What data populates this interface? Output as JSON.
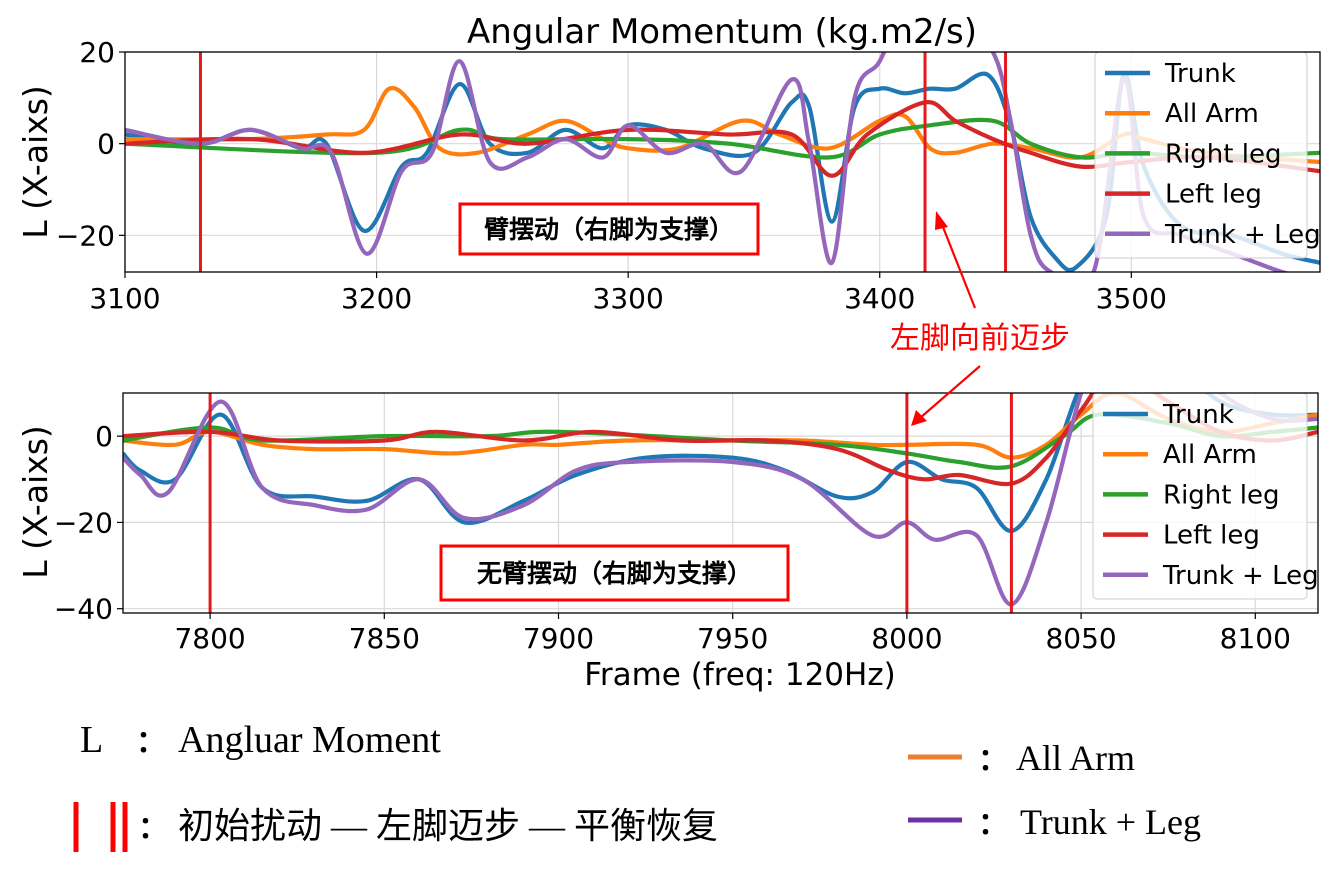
{
  "chart_data": [
    {
      "type": "line",
      "title": "Angular Momentum (kg.m2/s)",
      "xlabel": "",
      "ylabel": "L (X-aixs)",
      "xlim": [
        3100,
        3575
      ],
      "ylim": [
        -28,
        20
      ],
      "xticks": [
        3100,
        3200,
        3300,
        3400,
        3500
      ],
      "yticks": [
        20,
        0,
        -20
      ],
      "grid": true,
      "legend": "top-right",
      "vlines": [
        3130,
        3418,
        3450
      ],
      "vline_color": "#e31a1c",
      "annotation_box": "臂摆动（右脚为支撑）",
      "series": [
        {
          "name": "Trunk",
          "color": "#1f77b4",
          "x": [
            3100,
            3130,
            3150,
            3170,
            3180,
            3195,
            3210,
            3220,
            3233,
            3245,
            3260,
            3275,
            3290,
            3300,
            3315,
            3330,
            3350,
            3365,
            3372,
            3381,
            3390,
            3400,
            3410,
            3420,
            3430,
            3443,
            3452,
            3460,
            3470,
            3478,
            3490,
            3497,
            3505,
            3520,
            3540,
            3560,
            3575
          ],
          "y": [
            2,
            0,
            3,
            -1,
            0,
            -19,
            -5,
            -2,
            13,
            0,
            -2,
            3,
            -1,
            4,
            3,
            -1,
            -2,
            9,
            8,
            -17,
            8,
            12,
            11,
            12,
            12,
            15,
            4,
            -16,
            -25,
            -27,
            -16,
            15,
            -5,
            -18,
            -20,
            -24,
            -26
          ]
        },
        {
          "name": "All Arm",
          "color": "#ff7f0e",
          "x": [
            3100,
            3150,
            3180,
            3195,
            3205,
            3215,
            3225,
            3240,
            3260,
            3275,
            3290,
            3300,
            3320,
            3345,
            3360,
            3380,
            3400,
            3410,
            3420,
            3430,
            3445,
            3460,
            3480,
            3497,
            3505,
            3530,
            3575
          ],
          "y": [
            1,
            1,
            2,
            3,
            12,
            8,
            -1,
            -2,
            2,
            5,
            1,
            -1,
            -1,
            5,
            2,
            -1,
            5,
            6,
            -1,
            -2,
            0,
            -1,
            -3,
            2,
            1,
            -2,
            -4
          ]
        },
        {
          "name": "Right leg",
          "color": "#2ca02c",
          "x": [
            3100,
            3200,
            3233,
            3250,
            3300,
            3340,
            3380,
            3400,
            3420,
            3445,
            3460,
            3480,
            3500,
            3530,
            3575
          ],
          "y": [
            0,
            -2,
            3,
            1,
            1,
            0,
            -3,
            2,
            4,
            5,
            0,
            -3,
            -2,
            -3,
            -2
          ]
        },
        {
          "name": "Left leg",
          "color": "#d62728",
          "x": [
            3100,
            3150,
            3195,
            3233,
            3260,
            3300,
            3340,
            3365,
            3381,
            3395,
            3418,
            3430,
            3445,
            3460,
            3480,
            3500,
            3530,
            3575
          ],
          "y": [
            0,
            1,
            -2,
            2,
            0,
            3,
            2,
            2,
            -7,
            2,
            9,
            5,
            1,
            -2,
            -5,
            -4,
            -3,
            -6
          ]
        },
        {
          "name": "Trunk + Leg",
          "color": "#9467bd",
          "x": [
            3100,
            3130,
            3150,
            3170,
            3182,
            3196,
            3210,
            3222,
            3233,
            3245,
            3260,
            3275,
            3290,
            3300,
            3315,
            3330,
            3345,
            3365,
            3372,
            3381,
            3390,
            3400,
            3410,
            3418,
            3430,
            3445,
            3452,
            3460,
            3468,
            3485,
            3497,
            3505,
            3520,
            3545,
            3560,
            3575
          ],
          "y": [
            3,
            0,
            3,
            -1,
            -2,
            -24,
            -6,
            -2,
            18,
            -4,
            -3,
            1,
            -3,
            4,
            -2,
            0,
            -6,
            14,
            0,
            -26,
            10,
            18,
            30,
            32,
            28,
            20,
            5,
            -20,
            -28,
            -28,
            14,
            -16,
            -20,
            -25,
            -28,
            -30
          ]
        }
      ]
    },
    {
      "type": "line",
      "title": "",
      "xlabel": "Frame (freq: 120Hz)",
      "ylabel": "L (X-aixs)",
      "xlim": [
        7775,
        8118
      ],
      "ylim": [
        -41,
        10
      ],
      "xticks": [
        7800,
        7850,
        7900,
        7950,
        8000,
        8050,
        8100
      ],
      "yticks": [
        0,
        -20,
        -40
      ],
      "grid": true,
      "legend": "top-right",
      "vlines": [
        7800,
        8000,
        8030
      ],
      "vline_color": "#e31a1c",
      "annotation_box": "无臂摆动（右脚为支撑）",
      "series": [
        {
          "name": "Trunk",
          "color": "#1f77b4",
          "x": [
            7775,
            7780,
            7790,
            7803,
            7815,
            7830,
            7845,
            7860,
            7873,
            7890,
            7905,
            7925,
            7950,
            7965,
            7980,
            7990,
            8000,
            8010,
            8020,
            8030,
            8040,
            8050,
            8060,
            8075,
            8090,
            8105,
            8118
          ],
          "y": [
            -4,
            -8,
            -10,
            5,
            -12,
            -14,
            -15,
            -10,
            -20,
            -15,
            -9,
            -5,
            -5,
            -8,
            -14,
            -13,
            -6,
            -10,
            -12,
            -22,
            -10,
            12,
            25,
            18,
            8,
            5,
            5
          ]
        },
        {
          "name": "All Arm",
          "color": "#ff7f0e",
          "x": [
            7775,
            7790,
            7800,
            7815,
            7830,
            7850,
            7870,
            7890,
            7900,
            7920,
            7950,
            7970,
            7990,
            8000,
            8020,
            8030,
            8040,
            8050,
            8060,
            8075,
            8090,
            8105,
            8118
          ],
          "y": [
            -1,
            -2,
            1,
            -2,
            -3,
            -3,
            -4,
            -2,
            -2,
            -1,
            -1,
            -1,
            -2,
            -2,
            -2,
            -5,
            -2,
            5,
            10,
            4,
            1,
            3,
            5
          ]
        },
        {
          "name": "Right leg",
          "color": "#2ca02c",
          "x": [
            7775,
            7800,
            7815,
            7850,
            7880,
            7900,
            7950,
            7980,
            8000,
            8015,
            8030,
            8045,
            8055,
            8075,
            8090,
            8105,
            8118
          ],
          "y": [
            -1,
            2,
            -1,
            0,
            0,
            1,
            -1,
            -2,
            -4,
            -6,
            -7,
            0,
            5,
            3,
            0,
            1,
            2
          ]
        },
        {
          "name": "Left leg",
          "color": "#d62728",
          "x": [
            7775,
            7800,
            7820,
            7850,
            7865,
            7890,
            7910,
            7935,
            7960,
            7980,
            7995,
            8005,
            8015,
            8030,
            8040,
            8050,
            8060,
            8075,
            8090,
            8105,
            8118
          ],
          "y": [
            0,
            1,
            -1,
            -1,
            1,
            -1,
            1,
            -1,
            -1,
            -3,
            -8,
            -10,
            -9,
            -11,
            -5,
            6,
            15,
            8,
            1,
            -1,
            1
          ]
        },
        {
          "name": "Trunk + Leg",
          "color": "#9467bd",
          "x": [
            7775,
            7780,
            7788,
            7803,
            7815,
            7830,
            7845,
            7860,
            7873,
            7890,
            7905,
            7920,
            7950,
            7970,
            7990,
            8000,
            8008,
            8020,
            8030,
            8040,
            8050,
            8060,
            8075,
            8090,
            8105,
            8118
          ],
          "y": [
            -5,
            -9,
            -13,
            8,
            -12,
            -16,
            -17,
            -10,
            -19,
            -16,
            -8,
            -6,
            -6,
            -10,
            -23,
            -20,
            -24,
            -23,
            -39,
            -20,
            10,
            30,
            22,
            10,
            4,
            4
          ]
        }
      ]
    }
  ],
  "arrow_label": "左脚向前迈步",
  "notes": {
    "l_symbol": "L",
    "l_colon": "：",
    "l_text": "Angluar Moment",
    "vline_colon": "：",
    "vline_text": "初始扰动 — 左脚迈步 — 平衡恢复",
    "arm_colon": "：",
    "arm_text": "All Arm",
    "arm_color": "#ed7d31",
    "tl_colon": "：",
    "tl_text": "Trunk + Leg",
    "tl_color": "#7030a0"
  }
}
